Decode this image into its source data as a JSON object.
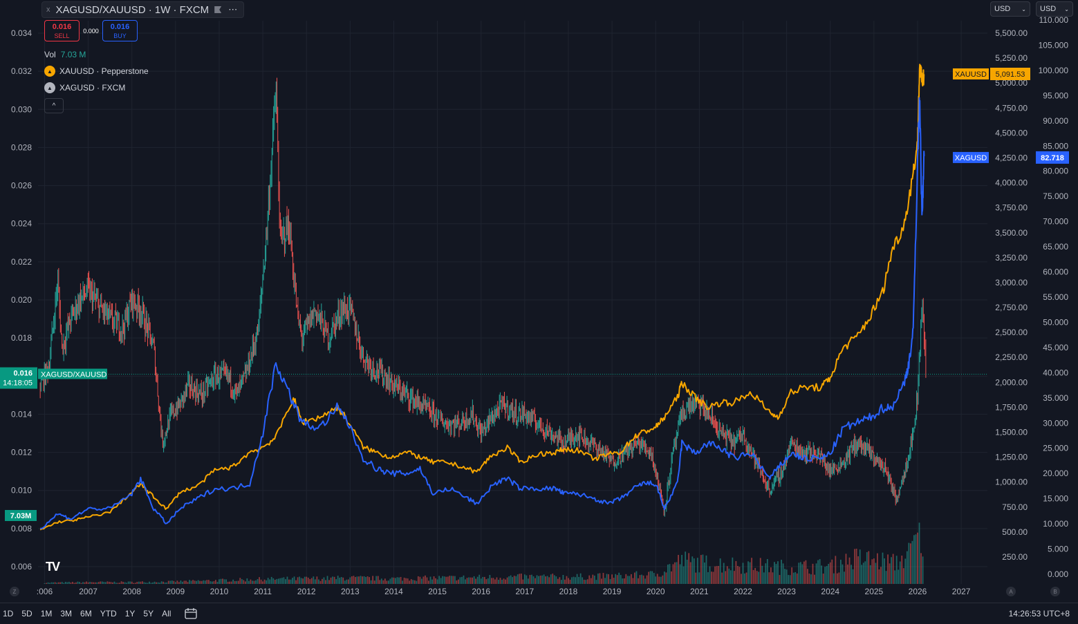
{
  "header": {
    "close_glyph": "x",
    "title": "XAGUSD/XAUUSD · 1W · FXCM",
    "more_glyph": "⋯",
    "sell_value": "0.016",
    "sell_label": "SELL",
    "spread": "0.000",
    "buy_value": "0.016",
    "buy_label": "BUY",
    "vol_label": "Vol",
    "vol_value": "7.03 M",
    "collapse_glyph": "^"
  },
  "legend": [
    {
      "label": "XAUUSD · Pepperstone",
      "color": "#f7a600"
    },
    {
      "label": "XAGUSD · FXCM",
      "color": "#b2b5be"
    }
  ],
  "currency_selectors": [
    "USD",
    "USD"
  ],
  "left_axis": {
    "ticks": [
      "0.034",
      "0.032",
      "0.030",
      "0.028",
      "0.026",
      "0.024",
      "0.022",
      "0.020",
      "0.018",
      "0.016",
      "0.014",
      "0.012",
      "0.010",
      "0.008",
      "0.006"
    ],
    "values": [
      0.034,
      0.032,
      0.03,
      0.028,
      0.026,
      0.024,
      0.022,
      0.02,
      0.018,
      0.016,
      0.014,
      0.012,
      0.01,
      0.008,
      0.006
    ],
    "price_tag": "0.016",
    "price_value": 0.0161,
    "countdown": "14:18:05",
    "pair_tag": "XAGUSD/XAUUSD",
    "volume_tag": "7.03M"
  },
  "gold_axis": {
    "ticks": [
      "5,500.00",
      "5,250.00",
      "5,000.00",
      "4,750.00",
      "4,500.00",
      "4,250.00",
      "4,000.00",
      "3,750.00",
      "3,500.00",
      "3,250.00",
      "3,000.00",
      "2,750.00",
      "2,500.00",
      "2,250.00",
      "2,000.00",
      "1,750.00",
      "1,500.00",
      "1,250.00",
      "1,000.00",
      "750.00",
      "500.00",
      "250.00"
    ],
    "values": [
      5500,
      5250,
      5000,
      4750,
      4500,
      4250,
      4000,
      3750,
      3500,
      3250,
      3000,
      2750,
      2500,
      2250,
      2000,
      1750,
      1500,
      1250,
      1000,
      750,
      500,
      250
    ],
    "tag_label": "XAUUSD",
    "tag_value": "5,091.53",
    "tag_price": 5091.53
  },
  "silver_axis": {
    "ticks": [
      "110.000",
      "105.000",
      "100.000",
      "95.000",
      "90.000",
      "85.000",
      "80.000",
      "75.000",
      "70.000",
      "65.000",
      "60.000",
      "55.000",
      "50.000",
      "45.000",
      "40.000",
      "35.000",
      "30.000",
      "25.000",
      "20.000",
      "15.000",
      "10.000",
      "5.000",
      "0.000"
    ],
    "values": [
      110,
      105,
      100,
      95,
      90,
      85,
      80,
      75,
      70,
      65,
      60,
      55,
      50,
      45,
      40,
      35,
      30,
      25,
      20,
      15,
      10,
      5,
      0
    ],
    "tag_label": "XAGUSD",
    "tag_value": "82.718",
    "tag_price": 82.718
  },
  "x_axis": {
    "ticks": [
      "2006",
      "2007",
      "2008",
      "2009",
      "2010",
      "2011",
      "2012",
      "2013",
      "2014",
      "2015",
      "2016",
      "2017",
      "2018",
      "2019",
      "2020",
      "2021",
      "2022",
      "2023",
      "2024",
      "2025",
      "2026",
      "2027"
    ],
    "first_tick_display": ":006",
    "corner_left": "Z",
    "corner_a": "A",
    "corner_b": "B"
  },
  "bottom_bar": {
    "ranges": [
      "1D",
      "5D",
      "1M",
      "3M",
      "6M",
      "YTD",
      "1Y",
      "5Y",
      "All"
    ],
    "clock": "14:26:53 UTC+8"
  },
  "colors": {
    "background": "#131722",
    "grid": "#1f2430",
    "ratio_up": "#26a69a",
    "ratio_down": "#ef5350",
    "gold": "#f7a600",
    "silver": "#2962ff",
    "text": "#b2b5be",
    "last_price": "#089981"
  },
  "chart_data": {
    "type": "line",
    "title": "XAGUSD/XAUUSD · 1W · FXCM",
    "x_unit": "year",
    "xlim": [
      2005.85,
      2027.6
    ],
    "series": [
      {
        "name": "XAGUSD/XAUUSD",
        "axis": "left",
        "ylim": [
          0.0055,
          0.035
        ],
        "x": [
          2005.9,
          2006.1,
          2006.3,
          2006.4,
          2006.6,
          2006.8,
          2007.0,
          2007.3,
          2007.5,
          2007.8,
          2008.0,
          2008.2,
          2008.5,
          2008.7,
          2008.9,
          2009.1,
          2009.3,
          2009.6,
          2009.9,
          2010.2,
          2010.4,
          2010.6,
          2010.9,
          2011.1,
          2011.3,
          2011.4,
          2011.6,
          2011.8,
          2011.9,
          2012.2,
          2012.5,
          2012.8,
          2013.0,
          2013.3,
          2013.5,
          2013.8,
          2014.0,
          2014.3,
          2014.6,
          2014.9,
          2015.2,
          2015.5,
          2015.8,
          2016.0,
          2016.3,
          2016.5,
          2016.8,
          2017.0,
          2017.3,
          2017.6,
          2017.9,
          2018.2,
          2018.5,
          2018.8,
          2019.0,
          2019.3,
          2019.6,
          2019.9,
          2020.1,
          2020.2,
          2020.4,
          2020.6,
          2020.8,
          2021.0,
          2021.2,
          2021.5,
          2021.8,
          2022.0,
          2022.3,
          2022.6,
          2022.9,
          2023.1,
          2023.4,
          2023.7,
          2024.0,
          2024.3,
          2024.6,
          2024.9,
          2025.1,
          2025.3,
          2025.5,
          2025.7,
          2025.9,
          2026.0,
          2026.1,
          2026.2
        ],
        "values": [
          0.0155,
          0.0165,
          0.021,
          0.0175,
          0.019,
          0.02,
          0.0205,
          0.0195,
          0.019,
          0.0185,
          0.02,
          0.0195,
          0.0175,
          0.0125,
          0.014,
          0.0145,
          0.0155,
          0.015,
          0.016,
          0.016,
          0.015,
          0.016,
          0.0185,
          0.024,
          0.031,
          0.023,
          0.024,
          0.019,
          0.018,
          0.0195,
          0.018,
          0.0195,
          0.0195,
          0.017,
          0.0165,
          0.016,
          0.0155,
          0.015,
          0.0145,
          0.014,
          0.0135,
          0.0135,
          0.014,
          0.013,
          0.014,
          0.0145,
          0.014,
          0.014,
          0.0135,
          0.013,
          0.0125,
          0.013,
          0.0125,
          0.012,
          0.0115,
          0.012,
          0.0125,
          0.012,
          0.01,
          0.009,
          0.012,
          0.014,
          0.0145,
          0.0145,
          0.014,
          0.013,
          0.0125,
          0.013,
          0.0115,
          0.01,
          0.011,
          0.0125,
          0.012,
          0.012,
          0.011,
          0.0115,
          0.0125,
          0.012,
          0.0115,
          0.011,
          0.0095,
          0.011,
          0.013,
          0.015,
          0.02,
          0.016
        ]
      },
      {
        "name": "XAUUSD",
        "axis": "gold",
        "x": [
          2005.9,
          2006.3,
          2006.7,
          2007.0,
          2007.5,
          2008.0,
          2008.2,
          2008.5,
          2008.8,
          2009.1,
          2009.5,
          2009.9,
          2010.3,
          2010.7,
          2011.0,
          2011.3,
          2011.7,
          2011.9,
          2012.3,
          2012.7,
          2012.9,
          2013.3,
          2013.6,
          2013.9,
          2014.3,
          2014.6,
          2014.9,
          2015.2,
          2015.6,
          2015.9,
          2016.2,
          2016.6,
          2016.9,
          2017.3,
          2017.7,
          2017.9,
          2018.2,
          2018.6,
          2018.9,
          2019.2,
          2019.5,
          2019.7,
          2020.0,
          2020.2,
          2020.5,
          2020.6,
          2020.9,
          2021.2,
          2021.5,
          2021.8,
          2022.2,
          2022.6,
          2022.8,
          2023.1,
          2023.4,
          2023.8,
          2024.0,
          2024.3,
          2024.6,
          2024.9,
          2025.2,
          2025.4,
          2025.7,
          2025.9,
          2026.0,
          2026.05,
          2026.1,
          2026.15
        ],
        "values": [
          520,
          600,
          620,
          650,
          700,
          900,
          980,
          850,
          730,
          900,
          960,
          1120,
          1150,
          1300,
          1350,
          1450,
          1850,
          1600,
          1650,
          1750,
          1650,
          1350,
          1300,
          1250,
          1300,
          1250,
          1200,
          1200,
          1150,
          1100,
          1250,
          1350,
          1200,
          1280,
          1300,
          1330,
          1320,
          1230,
          1280,
          1300,
          1450,
          1500,
          1550,
          1650,
          1850,
          2000,
          1850,
          1750,
          1800,
          1800,
          1900,
          1700,
          1650,
          1900,
          1950,
          1950,
          2050,
          2350,
          2450,
          2650,
          2900,
          3300,
          3600,
          4100,
          4400,
          5200,
          5000,
          5090
        ]
      },
      {
        "name": "XAGUSD",
        "axis": "silver",
        "x": [
          2005.9,
          2006.3,
          2006.6,
          2007.0,
          2007.5,
          2008.0,
          2008.2,
          2008.5,
          2008.8,
          2009.1,
          2009.5,
          2009.9,
          2010.3,
          2010.7,
          2011.0,
          2011.3,
          2011.6,
          2011.9,
          2012.3,
          2012.7,
          2012.9,
          2013.3,
          2013.6,
          2013.9,
          2014.3,
          2014.6,
          2014.9,
          2015.3,
          2015.7,
          2015.9,
          2016.3,
          2016.6,
          2016.9,
          2017.3,
          2017.7,
          2017.9,
          2018.2,
          2018.6,
          2018.9,
          2019.2,
          2019.5,
          2019.7,
          2020.0,
          2020.2,
          2020.5,
          2020.6,
          2020.9,
          2021.2,
          2021.5,
          2021.8,
          2022.2,
          2022.6,
          2022.8,
          2023.1,
          2023.4,
          2023.8,
          2024.0,
          2024.3,
          2024.6,
          2024.9,
          2025.2,
          2025.4,
          2025.7,
          2025.8,
          2025.9,
          2026.0,
          2026.05,
          2026.1,
          2026.15
        ],
        "values": [
          9,
          12,
          11,
          13,
          13,
          16,
          19,
          13,
          10,
          13,
          15,
          17,
          17,
          18,
          28,
          42,
          36,
          30,
          29,
          33,
          31,
          23,
          21,
          20,
          20,
          21,
          16,
          17,
          15,
          14,
          18,
          19,
          17,
          17,
          17,
          16,
          16,
          15,
          14,
          15,
          17,
          18,
          18,
          13,
          18,
          26,
          24,
          26,
          25,
          23,
          24,
          19,
          21,
          24,
          23,
          23,
          24,
          29,
          30,
          31,
          33,
          33,
          38,
          42,
          48,
          82,
          95,
          70,
          83
        ]
      },
      {
        "name": "Vol",
        "axis": "volume",
        "ylim": [
          0,
          25000000
        ],
        "x": [
          2006.0,
          2007.0,
          2008.0,
          2009.0,
          2010.0,
          2011.0,
          2012.0,
          2013.0,
          2014.0,
          2015.0,
          2016.0,
          2017.0,
          2018.0,
          2019.0,
          2020.0,
          2020.6,
          2021.0,
          2022.0,
          2023.0,
          2024.0,
          2024.6,
          2025.0,
          2025.5,
          2025.8,
          2026.0,
          2026.1
        ],
        "values": [
          200000,
          300000,
          300000,
          400000,
          600000,
          800000,
          900000,
          1000000,
          900000,
          1000000,
          1100000,
          1200000,
          1200000,
          1300000,
          1600000,
          4000000,
          3500000,
          3200000,
          2800000,
          3000000,
          4300000,
          4000000,
          3500000,
          5000000,
          8000000,
          7030000
        ]
      }
    ]
  }
}
